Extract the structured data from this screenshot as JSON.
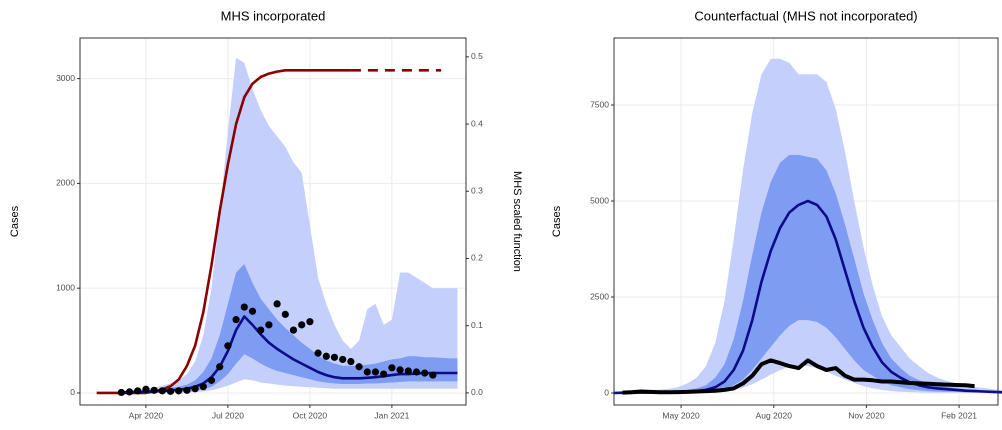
{
  "chart_data": [
    {
      "type": "line",
      "title": "MHS incorporated",
      "y_label": "Cases",
      "y2_label": "MHS scaled function",
      "grid": true,
      "x": [
        2020.1,
        2020.125,
        2020.15,
        2020.175,
        2020.2,
        2020.225,
        2020.25,
        2020.275,
        2020.3,
        2020.325,
        2020.35,
        2020.375,
        2020.4,
        2020.425,
        2020.45,
        2020.475,
        2020.5,
        2020.525,
        2020.55,
        2020.575,
        2020.6,
        2020.625,
        2020.65,
        2020.675,
        2020.7,
        2020.725,
        2020.75,
        2020.775,
        2020.8,
        2020.825,
        2020.85,
        2020.875,
        2020.9,
        2020.925,
        2020.95,
        2020.975,
        2021,
        2021.025,
        2021.05,
        2021.075,
        2021.1,
        2021.125,
        2021.15,
        2021.175,
        2021.2
      ],
      "xlim": [
        2020.049,
        2021.226
      ],
      "xticks": [
        {
          "value": 2020.25,
          "label": "Apr 2020"
        },
        {
          "value": 2020.5,
          "label": "Jul 2020"
        },
        {
          "value": 2020.75,
          "label": "Oct 2020"
        },
        {
          "value": 2021.0,
          "label": "Jan 2021"
        }
      ],
      "ylim": [
        -115,
        3388
      ],
      "yticks": [
        0,
        1000,
        2000,
        3000
      ],
      "y2lim": [
        -0.018,
        0.528
      ],
      "y2ticks": [
        {
          "value": 0,
          "label": "0.0"
        },
        0.1,
        0.2,
        0.3,
        0.4,
        0.5
      ],
      "bands": [
        {
          "color": "#c4d0fb",
          "lower": [
            null,
            null,
            null,
            0,
            0,
            0,
            0,
            0,
            0,
            2,
            3,
            5,
            8,
            15,
            25,
            45,
            70,
            100,
            130,
            120,
            100,
            90,
            80,
            70,
            65,
            60,
            55,
            50,
            45,
            40,
            40,
            40,
            40,
            40,
            40,
            40,
            40,
            40,
            40,
            40,
            40,
            40,
            40,
            40,
            40
          ],
          "upper": [
            null,
            null,
            null,
            20,
            25,
            30,
            40,
            50,
            70,
            90,
            120,
            180,
            300,
            550,
            1000,
            1700,
            2500,
            3200,
            3150,
            2900,
            2700,
            2550,
            2450,
            2350,
            2200,
            2100,
            1600,
            1100,
            850,
            650,
            500,
            420,
            500,
            800,
            850,
            650,
            700,
            1150,
            1150,
            1100,
            1050,
            1000,
            1000,
            1000,
            1000
          ]
        },
        {
          "color": "#7f9cf3",
          "lower": [
            null,
            null,
            null,
            0,
            0,
            2,
            3,
            5,
            8,
            10,
            12,
            15,
            20,
            35,
            60,
            110,
            180,
            280,
            370,
            330,
            280,
            240,
            210,
            190,
            170,
            150,
            130,
            110,
            100,
            90,
            85,
            85,
            85,
            90,
            90,
            95,
            100,
            105,
            110,
            110,
            110,
            110,
            110,
            110,
            110
          ],
          "upper": [
            null,
            null,
            null,
            10,
            15,
            20,
            25,
            30,
            40,
            50,
            60,
            80,
            120,
            200,
            330,
            550,
            850,
            1150,
            1230,
            1050,
            900,
            800,
            700,
            620,
            550,
            480,
            420,
            360,
            310,
            280,
            260,
            260,
            260,
            270,
            280,
            300,
            320,
            330,
            350,
            350,
            340,
            340,
            335,
            330,
            330
          ]
        }
      ],
      "series": [
        {
          "color": "#8b0000",
          "style": "line",
          "axis": "y2",
          "values": [
            0,
            0,
            0,
            0,
            0,
            0,
            0,
            0.002,
            0.005,
            0.01,
            0.02,
            0.04,
            0.07,
            0.12,
            0.19,
            0.27,
            0.34,
            0.4,
            0.44,
            0.46,
            0.47,
            0.475,
            0.478,
            0.48,
            0.48,
            0.48,
            0.48,
            0.48,
            0.48,
            0.48,
            0.48,
            0.48,
            null,
            null,
            null,
            null,
            null,
            null,
            null,
            null,
            null,
            null,
            null,
            null,
            null
          ]
        },
        {
          "color": "#8b0000",
          "style": "dashed",
          "axis": "y2",
          "values": [
            null,
            null,
            null,
            null,
            null,
            null,
            null,
            null,
            null,
            null,
            null,
            null,
            null,
            null,
            null,
            null,
            null,
            null,
            null,
            null,
            null,
            null,
            null,
            null,
            null,
            null,
            null,
            null,
            null,
            null,
            null,
            0.48,
            0.48,
            0.48,
            0.48,
            0.48,
            0.48,
            0.48,
            0.48,
            0.48,
            0.48,
            0.48,
            0.48,
            null,
            null
          ]
        },
        {
          "color": "#0c0c86",
          "style": "line",
          "values": [
            null,
            null,
            null,
            5,
            8,
            10,
            12,
            15,
            20,
            25,
            30,
            40,
            60,
            90,
            150,
            250,
            400,
            600,
            730,
            650,
            560,
            480,
            420,
            370,
            320,
            280,
            240,
            200,
            170,
            150,
            140,
            140,
            140,
            145,
            150,
            160,
            170,
            180,
            180,
            185,
            190,
            190,
            190,
            190,
            190
          ]
        },
        {
          "color": "#000000",
          "style": "points",
          "values": [
            null,
            null,
            null,
            5,
            10,
            20,
            35,
            25,
            20,
            15,
            20,
            25,
            40,
            60,
            120,
            250,
            450,
            700,
            820,
            780,
            600,
            650,
            850,
            750,
            600,
            650,
            680,
            380,
            350,
            340,
            320,
            300,
            250,
            200,
            200,
            180,
            240,
            220,
            210,
            200,
            190,
            170,
            null,
            null,
            null
          ]
        }
      ]
    },
    {
      "type": "line",
      "title": "Counterfactual (MHS not incorporated)",
      "y_label": "Cases",
      "grid": true,
      "x": [
        2020.15,
        2020.175,
        2020.2,
        2020.225,
        2020.25,
        2020.275,
        2020.3,
        2020.325,
        2020.35,
        2020.375,
        2020.4,
        2020.425,
        2020.45,
        2020.475,
        2020.5,
        2020.525,
        2020.55,
        2020.575,
        2020.6,
        2020.625,
        2020.65,
        2020.675,
        2020.7,
        2020.725,
        2020.75,
        2020.775,
        2020.8,
        2020.825,
        2020.85,
        2020.875,
        2020.9,
        2020.925,
        2020.95,
        2020.975,
        2021,
        2021.025,
        2021.05,
        2021.075,
        2021.1,
        2021.125,
        2021.15,
        2021.175,
        2021.2
      ],
      "xlim": [
        2020.152,
        2021.188
      ],
      "xticks": [
        {
          "value": 2020.333,
          "label": "May 2020"
        },
        {
          "value": 2020.583,
          "label": "Aug 2020"
        },
        {
          "value": 2020.833,
          "label": "Nov 2020"
        },
        {
          "value": 2021.083,
          "label": "Feb 2021"
        }
      ],
      "ylim": [
        -312,
        9245
      ],
      "yticks": [
        0,
        2500,
        5000,
        7500
      ],
      "bands": [
        {
          "color": "#c4d0fb",
          "lower": [
            0,
            0,
            0,
            0,
            0,
            0,
            1,
            2,
            3,
            5,
            10,
            20,
            40,
            80,
            140,
            230,
            350,
            480,
            600,
            680,
            720,
            700,
            650,
            560,
            450,
            350,
            260,
            180,
            120,
            80,
            50,
            35,
            25,
            15,
            10,
            8,
            6,
            5,
            4,
            3,
            2,
            2,
            1
          ],
          "upper": [
            30,
            60,
            80,
            80,
            80,
            90,
            110,
            150,
            250,
            400,
            700,
            1300,
            2400,
            4000,
            5800,
            7300,
            8300,
            8700,
            8700,
            8600,
            8300,
            8300,
            8300,
            8100,
            7400,
            6300,
            5000,
            3800,
            2800,
            2000,
            1500,
            1200,
            900,
            700,
            520,
            400,
            320,
            250,
            200,
            160,
            130,
            100,
            80
          ]
        },
        {
          "color": "#7f9cf3",
          "lower": [
            0,
            0,
            2,
            3,
            3,
            3,
            5,
            8,
            12,
            20,
            30,
            60,
            110,
            200,
            350,
            600,
            900,
            1200,
            1500,
            1750,
            1900,
            1900,
            1850,
            1700,
            1450,
            1150,
            850,
            600,
            450,
            300,
            200,
            150,
            100,
            70,
            50,
            40,
            35,
            30,
            20,
            15,
            10,
            8,
            5
          ],
          "upper": [
            0,
            15,
            25,
            25,
            25,
            30,
            40,
            50,
            80,
            120,
            200,
            400,
            750,
            1400,
            2400,
            3600,
            4700,
            5500,
            6000,
            6200,
            6200,
            6150,
            6100,
            5800,
            5200,
            4400,
            3500,
            2600,
            1900,
            1300,
            900,
            650,
            450,
            330,
            250,
            200,
            160,
            130,
            100,
            80,
            60,
            45,
            30
          ]
        }
      ],
      "series": [
        {
          "color": "#0c0c86",
          "style": "line",
          "values": [
            0,
            5,
            10,
            10,
            10,
            10,
            15,
            20,
            30,
            50,
            80,
            150,
            300,
            600,
            1100,
            1900,
            2900,
            3700,
            4300,
            4700,
            4900,
            5000,
            4900,
            4600,
            4000,
            3200,
            2400,
            1700,
            1200,
            800,
            550,
            400,
            280,
            200,
            150,
            120,
            100,
            80,
            60,
            50,
            40,
            30,
            20
          ]
        },
        {
          "color": "#000000",
          "style": "thick",
          "values": [
            null,
            10,
            20,
            40,
            30,
            20,
            20,
            25,
            30,
            40,
            50,
            60,
            80,
            120,
            250,
            450,
            750,
            850,
            780,
            700,
            650,
            850,
            700,
            600,
            650,
            450,
            350,
            350,
            330,
            300,
            300,
            280,
            260,
            250,
            240,
            230,
            220,
            210,
            200,
            180,
            null,
            null,
            null
          ]
        }
      ]
    }
  ]
}
